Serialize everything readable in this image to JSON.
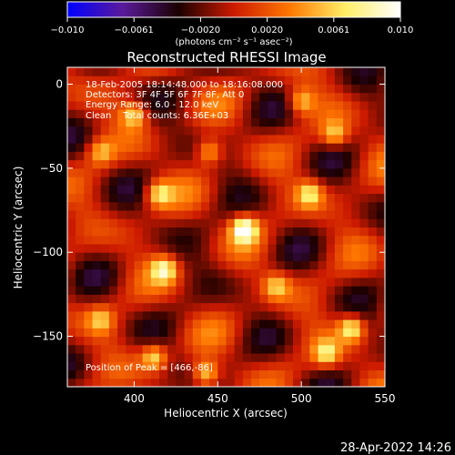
{
  "chart_data": {
    "type": "heatmap",
    "title": "Reconstructed RHESSI Image",
    "xlabel": "Heliocentric X (arcsec)",
    "ylabel": "Heliocentric Y (arcsec)",
    "xlim": [
      360,
      550
    ],
    "ylim": [
      -180,
      10
    ],
    "xticks": [
      400,
      450,
      500,
      550
    ],
    "yticks": [
      0,
      -50,
      -100,
      -150
    ],
    "colorbar": {
      "range": [
        -0.01,
        0.01
      ],
      "ticks": [
        "−0.010",
        "−0.0061",
        "−0.0020",
        "0.0020",
        "0.0061",
        "0.010"
      ],
      "unit_label": "(photons cm⁻² s⁻¹ asec⁻²)",
      "colors": [
        "#0000ff",
        "#5a1a9a",
        "#1a0000",
        "#cc1a00",
        "#ff7700",
        "#ffee66",
        "#ffffff"
      ]
    },
    "annotations": [
      "18-Feb-2005 18:14:48.000 to 18:16:08.000",
      "Detectors: 3F 4F 5F 6F 7F 8F, Att 0",
      "Energy Range: 6.0 - 12.0 keV",
      "Clean    Total counts: 6.36E+03"
    ],
    "peak_label": "Position of Peak = [466,-86]",
    "peak_position": [
      466,
      -86
    ],
    "sources": [
      {
        "x": 466,
        "y": -86,
        "flux": 0.01
      },
      {
        "x": 400,
        "y": -18,
        "flux": 0.0065
      },
      {
        "x": 415,
        "y": -65,
        "flux": 0.0068
      },
      {
        "x": 418,
        "y": -110,
        "flux": 0.0074
      },
      {
        "x": 380,
        "y": -40,
        "flux": 0.005
      },
      {
        "x": 445,
        "y": -40,
        "flux": 0.006
      },
      {
        "x": 500,
        "y": -10,
        "flux": 0.0058
      },
      {
        "x": 520,
        "y": -30,
        "flux": 0.006
      },
      {
        "x": 505,
        "y": -65,
        "flux": 0.0065
      },
      {
        "x": 530,
        "y": -145,
        "flux": 0.008
      },
      {
        "x": 515,
        "y": -160,
        "flux": 0.0064
      },
      {
        "x": 412,
        "y": -162,
        "flux": 0.007
      },
      {
        "x": 443,
        "y": -172,
        "flux": 0.0072
      },
      {
        "x": 485,
        "y": -120,
        "flux": 0.0055
      },
      {
        "x": 380,
        "y": -140,
        "flux": 0.0048
      }
    ]
  },
  "footer": {
    "timestamp": "28-Apr-2022 14:26"
  }
}
